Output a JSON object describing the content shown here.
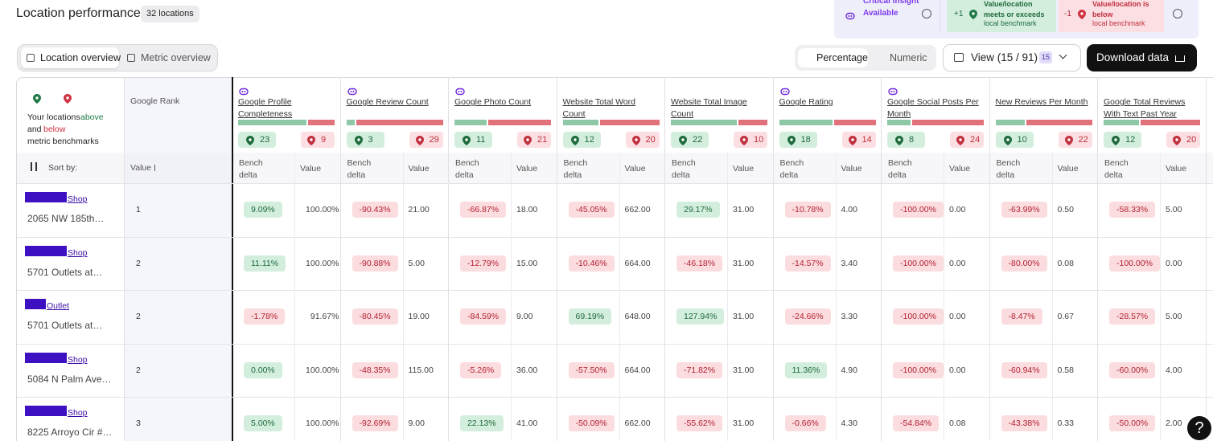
{
  "header": {
    "title": "Location performance",
    "count_badge": "32 locations"
  },
  "legend": {
    "insight": "Critical Insight Available",
    "above": {
      "delta": "+1",
      "bold": "Value/location meets or exceeds",
      "rest": "local benchmark"
    },
    "below": {
      "delta": "-1",
      "bold": "Value/location is below",
      "rest": "local benchmark"
    }
  },
  "tabs": {
    "items": [
      "Location overview",
      "Metric overview"
    ],
    "active": 0
  },
  "format_toggle": {
    "items": [
      "Percentage",
      "Numeric"
    ],
    "active": 0
  },
  "view_button": {
    "label": "View (15 / 91)",
    "badge": "15"
  },
  "download": "Download data",
  "help": "?",
  "table": {
    "corner": {
      "intro": "Your locations",
      "above": "above",
      "and": "and",
      "below": "below",
      "rest": "metric benchmarks"
    },
    "sort_label": "Sort by:",
    "rank_header": "Google Rank",
    "rank_sub": "Value",
    "sub_headers": [
      "Bench delta",
      "Value"
    ],
    "metrics": [
      {
        "name": "Google Profile Completeness",
        "insight": true,
        "above": 23,
        "below": 9
      },
      {
        "name": "Google Review Count",
        "insight": true,
        "above": 3,
        "below": 29
      },
      {
        "name": "Google Photo Count",
        "insight": true,
        "above": 11,
        "below": 21
      },
      {
        "name": "Website Total Word Count",
        "insight": false,
        "above": 12,
        "below": 20
      },
      {
        "name": "Website Total Image Count",
        "insight": false,
        "above": 22,
        "below": 10
      },
      {
        "name": "Google Rating",
        "insight": true,
        "above": 18,
        "below": 14
      },
      {
        "name": "Google Social Posts Per Month",
        "insight": true,
        "above": 8,
        "below": 24
      },
      {
        "name": "New Reviews Per Month",
        "insight": false,
        "above": 10,
        "below": 22
      },
      {
        "name": "Google Total Reviews With Text Past Year",
        "insight": false,
        "above": 12,
        "below": 20
      }
    ],
    "rows": [
      {
        "name": "Shop",
        "address": "2065 NW 185th…",
        "rank": 1,
        "cells": [
          [
            "9.09%",
            "100.00%"
          ],
          [
            "-90.43%",
            "21.00"
          ],
          [
            "-66.87%",
            "18.00"
          ],
          [
            "-45.05%",
            "662.00"
          ],
          [
            "29.17%",
            "31.00"
          ],
          [
            "-10.78%",
            "4.00"
          ],
          [
            "-100.00%",
            "0.00"
          ],
          [
            "-63.99%",
            "0.50"
          ],
          [
            "-58.33%",
            "5.00"
          ]
        ]
      },
      {
        "name": "Shop",
        "address": "5701 Outlets at…",
        "rank": 2,
        "cells": [
          [
            "11.11%",
            "100.00%"
          ],
          [
            "-90.88%",
            "5.00"
          ],
          [
            "-12.79%",
            "15.00"
          ],
          [
            "-10.46%",
            "664.00"
          ],
          [
            "-46.18%",
            "31.00"
          ],
          [
            "-14.57%",
            "3.40"
          ],
          [
            "-100.00%",
            "0.00"
          ],
          [
            "-80.00%",
            "0.08"
          ],
          [
            "-100.00%",
            "0.00"
          ]
        ]
      },
      {
        "name": "Outlet",
        "address": "5701 Outlets at…",
        "rank": 2,
        "cells": [
          [
            "-1.78%",
            "91.67%"
          ],
          [
            "-80.45%",
            "19.00"
          ],
          [
            "-84.59%",
            "9.00"
          ],
          [
            "69.19%",
            "648.00"
          ],
          [
            "127.94%",
            "31.00"
          ],
          [
            "-24.66%",
            "3.30"
          ],
          [
            "-100.00%",
            "0.00"
          ],
          [
            "-8.47%",
            "0.67"
          ],
          [
            "-28.57%",
            "5.00"
          ]
        ]
      },
      {
        "name": "Shop",
        "address": "5084 N Palm Ave…",
        "rank": 2,
        "cells": [
          [
            "0.00%",
            "100.00%"
          ],
          [
            "-48.35%",
            "115.00"
          ],
          [
            "-5.26%",
            "36.00"
          ],
          [
            "-57.50%",
            "664.00"
          ],
          [
            "-71.82%",
            "31.00"
          ],
          [
            "11.36%",
            "4.90"
          ],
          [
            "-100.00%",
            "0.00"
          ],
          [
            "-60.94%",
            "0.58"
          ],
          [
            "-60.00%",
            "4.00"
          ]
        ]
      },
      {
        "name": "Shop",
        "address": "8225 Arroyo Cir #…",
        "rank": 3,
        "cells": [
          [
            "5.00%",
            "100.00%"
          ],
          [
            "-92.69%",
            "9.00"
          ],
          [
            "22.13%",
            "41.00"
          ],
          [
            "-50.09%",
            "662.00"
          ],
          [
            "-55.62%",
            "31.00"
          ],
          [
            "-0.66%",
            "4.30"
          ],
          [
            "-54.84%",
            "0.08"
          ],
          [
            "-43.38%",
            "0.33"
          ],
          [
            "-50.00%",
            "2.00"
          ]
        ]
      }
    ]
  }
}
